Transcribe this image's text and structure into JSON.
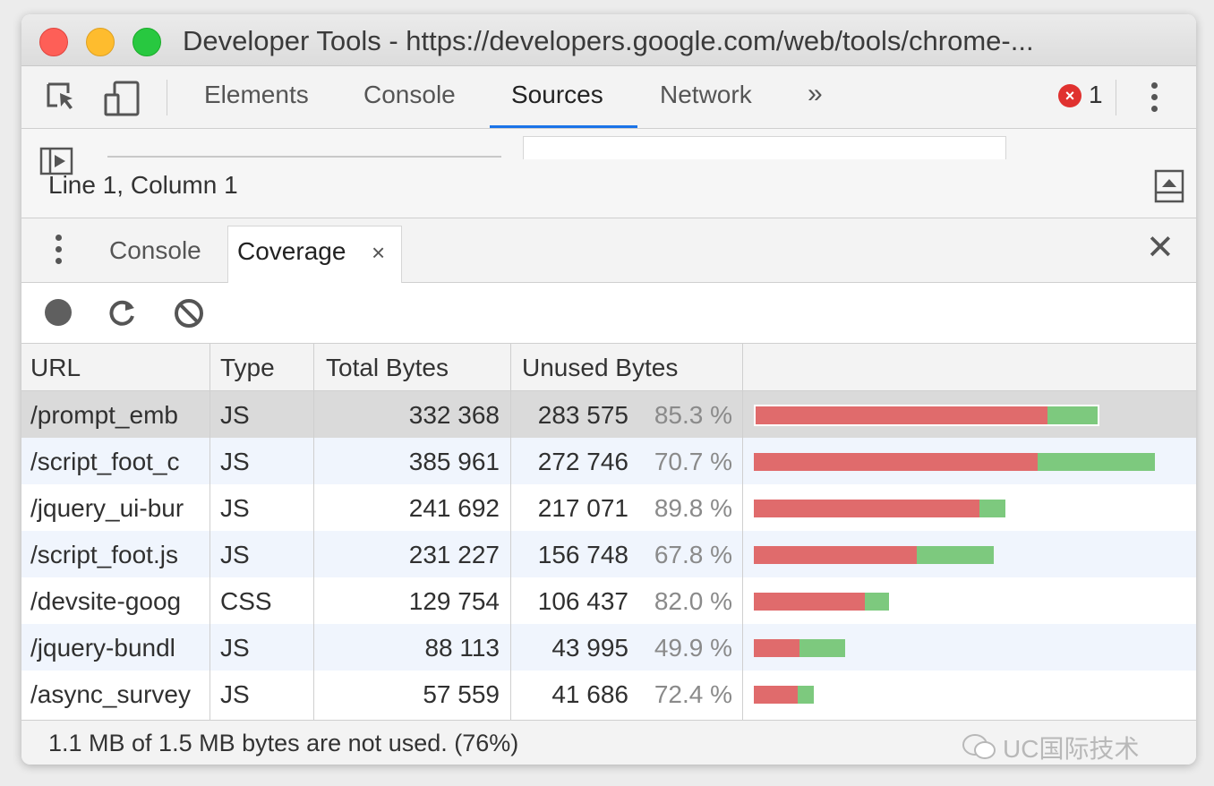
{
  "window": {
    "title": "Developer Tools - https://developers.google.com/web/tools/chrome-..."
  },
  "toolbar": {
    "tabs": [
      {
        "label": "Elements",
        "active": false
      },
      {
        "label": "Console",
        "active": false
      },
      {
        "label": "Sources",
        "active": true
      },
      {
        "label": "Network",
        "active": false
      }
    ],
    "more_tabs": "»",
    "error_count": "1",
    "accent_color": "#1a73e8"
  },
  "editor": {
    "status": "Line 1, Column 1"
  },
  "drawer": {
    "tabs": [
      {
        "label": "Console",
        "active": false
      },
      {
        "label": "Coverage",
        "active": true,
        "closable": "×"
      }
    ],
    "close": "✕"
  },
  "coverage": {
    "columns": [
      "URL",
      "Type",
      "Total Bytes",
      "Unused Bytes",
      ""
    ],
    "rows": [
      {
        "url": "/prompt_emb",
        "type": "JS",
        "total": "332 368",
        "unused": "283 575",
        "pct": "85.3 %",
        "total_bytes": 332368,
        "unused_bytes": 283575,
        "selected": true
      },
      {
        "url": "/script_foot_c",
        "type": "JS",
        "total": "385 961",
        "unused": "272 746",
        "pct": "70.7 %",
        "total_bytes": 385961,
        "unused_bytes": 272746
      },
      {
        "url": "/jquery_ui-bur",
        "type": "JS",
        "total": "241 692",
        "unused": "217 071",
        "pct": "89.8 %",
        "total_bytes": 241692,
        "unused_bytes": 217071
      },
      {
        "url": "/script_foot.js",
        "type": "JS",
        "total": "231 227",
        "unused": "156 748",
        "pct": "67.8 %",
        "total_bytes": 231227,
        "unused_bytes": 156748
      },
      {
        "url": "/devsite-goog",
        "type": "CSS",
        "total": "129 754",
        "unused": "106 437",
        "pct": "82.0 %",
        "total_bytes": 129754,
        "unused_bytes": 106437
      },
      {
        "url": "/jquery-bundl",
        "type": "JS",
        "total": "88 113",
        "unused": "43 995",
        "pct": "49.9 %",
        "total_bytes": 88113,
        "unused_bytes": 43995
      },
      {
        "url": "/async_survey",
        "type": "JS",
        "total": "57 559",
        "unused": "41 686",
        "pct": "72.4 %",
        "total_bytes": 57559,
        "unused_bytes": 41686
      }
    ],
    "unused_color": "#e06b6c",
    "used_color": "#7dc97e",
    "summary": "1.1 MB of 1.5 MB bytes are not used. (76%)"
  },
  "watermark": "UC国际技术"
}
